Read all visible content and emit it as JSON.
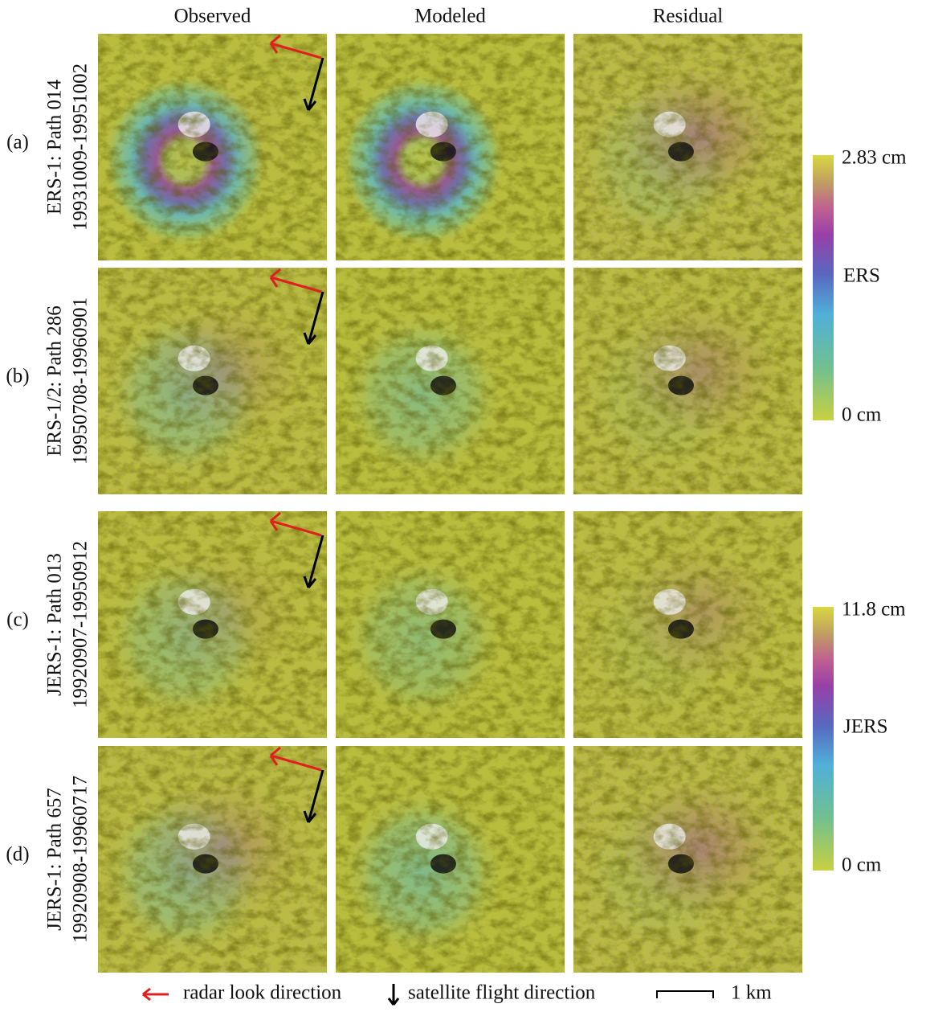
{
  "column_headers": [
    "Observed",
    "Modeled",
    "Residual"
  ],
  "rows": [
    {
      "label": "(a)",
      "track": "ERS-1: Path 014",
      "dates": "19931009-19951002"
    },
    {
      "label": "(b)",
      "track": "ERS-1/2: Path 286",
      "dates": "19950708-19960901"
    },
    {
      "label": "(c)",
      "track": "JERS-1: Path 013",
      "dates": "19920907-19950912"
    },
    {
      "label": "(d)",
      "track": "JERS-1: Path 657",
      "dates": "19920908-19960717"
    }
  ],
  "colorbars": [
    {
      "max": "2.83 cm",
      "name": "ERS",
      "min": "0 cm"
    },
    {
      "max": "11.8 cm",
      "name": "JERS",
      "min": "0 cm"
    }
  ],
  "legend": {
    "look": "radar look direction",
    "flight": "satellite flight direction",
    "scale": "1 km"
  }
}
